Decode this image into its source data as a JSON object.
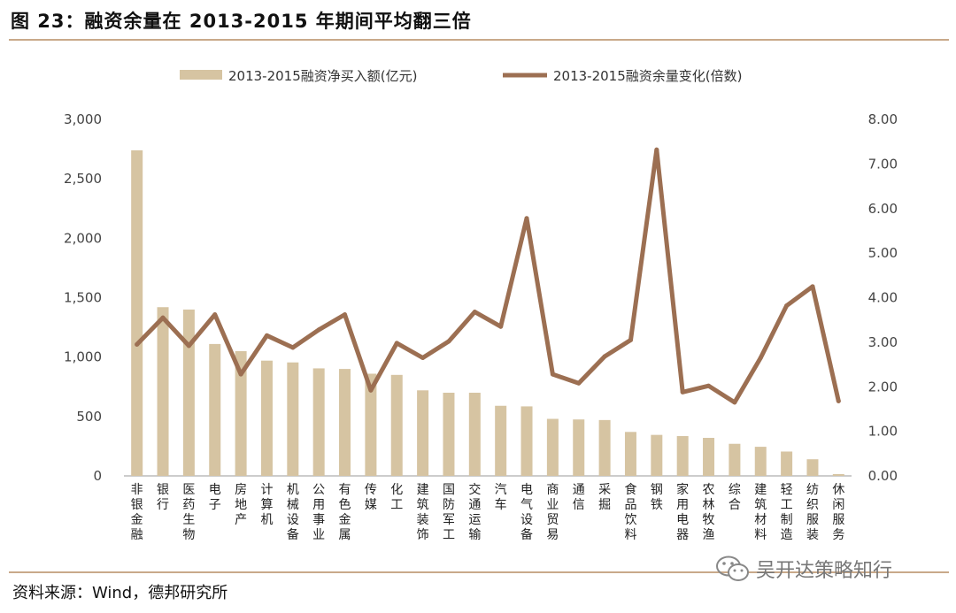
{
  "header": {
    "title": "图 23：融资余量在 2013-2015 年期间平均翻三倍"
  },
  "footer": {
    "source": "资料来源：Wind，德邦研究所"
  },
  "watermark": {
    "text": "吴开达策略知行",
    "icon": "wechat-icon"
  },
  "colors": {
    "bar": "#d6c4a2",
    "line": "#9c6f52",
    "rule": "#c9a98a"
  },
  "chart_data": {
    "type": "bar+line",
    "legend": {
      "placement": "top",
      "entries": [
        "2013-2015融资净买入额(亿元)",
        "2013-2015融资余量变化(倍数)"
      ]
    },
    "categories": [
      "非银金融",
      "银行",
      "医药生物",
      "电子",
      "房地产",
      "计算机",
      "机械设备",
      "公用事业",
      "有色金属",
      "传媒",
      "化工",
      "建筑装饰",
      "国防军工",
      "交通运输",
      "汽车",
      "电气设备",
      "商业贸易",
      "通信",
      "采掘",
      "食品饮料",
      "钢铁",
      "家用电器",
      "农林牧渔",
      "综合",
      "建筑材料",
      "轻工制造",
      "纺织服装",
      "休闲服务"
    ],
    "left_axis": {
      "min": 0,
      "max": 3000,
      "step": 500,
      "ticks": [
        "0",
        "500",
        "1,000",
        "1,500",
        "2,000",
        "2,500",
        "3,000"
      ]
    },
    "right_axis": {
      "min": 0,
      "max": 8,
      "step": 1,
      "ticks": [
        "0.00",
        "1.00",
        "2.00",
        "3.00",
        "4.00",
        "5.00",
        "6.00",
        "7.00",
        "8.00"
      ]
    },
    "series": [
      {
        "name": "2013-2015融资净买入额(亿元)",
        "type": "bar",
        "axis": "left",
        "values": [
          2740,
          1420,
          1400,
          1110,
          1050,
          970,
          955,
          905,
          900,
          860,
          850,
          720,
          700,
          700,
          590,
          585,
          480,
          475,
          470,
          370,
          345,
          335,
          320,
          270,
          245,
          205,
          140,
          15
        ]
      },
      {
        "name": "2013-2015融资余量变化(倍数)",
        "type": "line",
        "axis": "right",
        "values": [
          2.95,
          3.55,
          2.92,
          3.62,
          2.28,
          3.15,
          2.88,
          3.28,
          3.62,
          1.92,
          2.98,
          2.65,
          3.02,
          3.68,
          3.35,
          5.78,
          2.28,
          2.08,
          2.68,
          3.05,
          7.32,
          1.88,
          2.02,
          1.65,
          2.65,
          3.82,
          4.25,
          1.68
        ]
      }
    ]
  }
}
